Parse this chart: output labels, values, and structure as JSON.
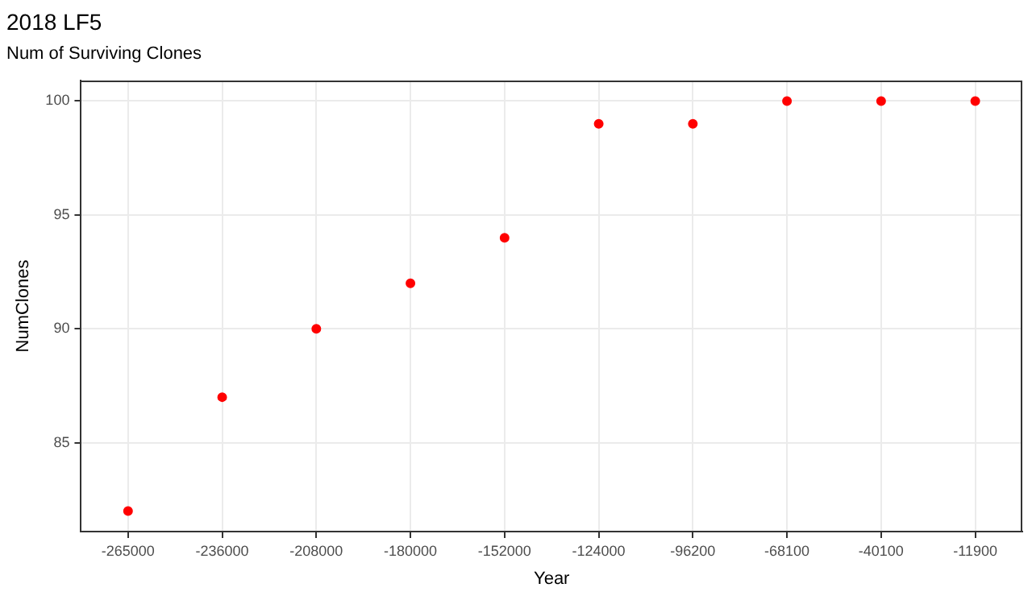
{
  "chart_data": {
    "type": "scatter",
    "title": "2018 LF5",
    "subtitle": "Num of Surviving Clones",
    "xlabel": "Year",
    "ylabel": "NumClones",
    "categories": [
      "-265000",
      "-236000",
      "-208000",
      "-180000",
      "-152000",
      "-124000",
      "-96200",
      "-68100",
      "-40100",
      "-11900"
    ],
    "series": [
      {
        "color": "#ff0000",
        "values": [
          82,
          87,
          90,
          92,
          94,
          99,
          99,
          100,
          100,
          100
        ]
      }
    ],
    "ylim": [
      81.1,
      100.9
    ],
    "yticks": [
      85,
      90,
      95,
      100
    ],
    "grid": true,
    "legend": false,
    "marker": "circle"
  }
}
